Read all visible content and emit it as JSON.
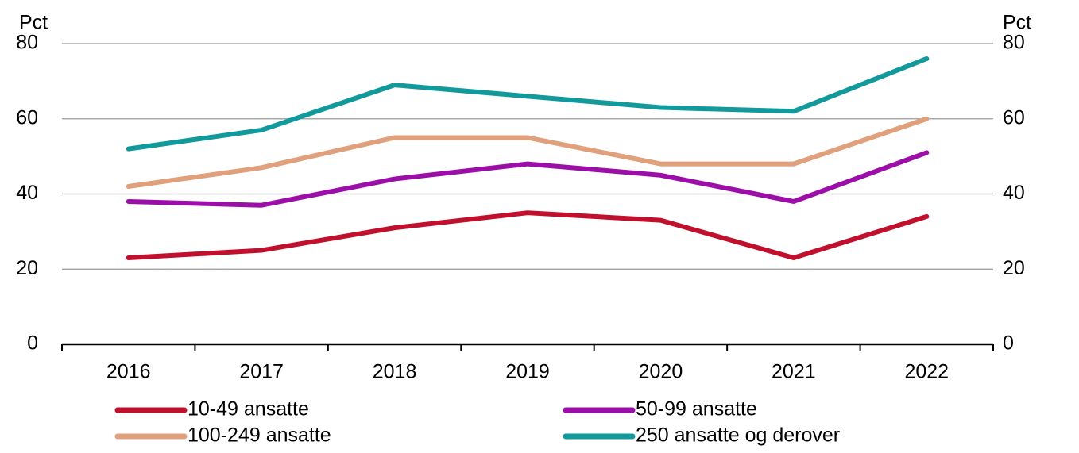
{
  "chart_data": {
    "type": "line",
    "y_label": "Pct",
    "y2_label": "Pct",
    "categories": [
      "2016",
      "2017",
      "2018",
      "2019",
      "2020",
      "2021",
      "2022"
    ],
    "series": [
      {
        "name": "10-49 ansatte",
        "color": "#c0102e",
        "values": [
          23,
          25,
          31,
          35,
          33,
          23,
          34
        ]
      },
      {
        "name": "50-99 ansatte",
        "color": "#9b0fa8",
        "values": [
          38,
          37,
          44,
          48,
          45,
          38,
          51
        ]
      },
      {
        "name": "100-249 ansatte",
        "color": "#e0a07c",
        "values": [
          42,
          47,
          55,
          55,
          48,
          48,
          60
        ]
      },
      {
        "name": "250 ansatte og derover",
        "color": "#11999b",
        "values": [
          52,
          57,
          69,
          66,
          63,
          62,
          76
        ]
      }
    ],
    "ylim": [
      0,
      80
    ],
    "yticks": [
      0,
      20,
      40,
      60,
      80
    ],
    "y2lim": [
      0,
      80
    ],
    "y2ticks": [
      0,
      20,
      40,
      60,
      80
    ],
    "grid": true,
    "legend": "bottom"
  }
}
